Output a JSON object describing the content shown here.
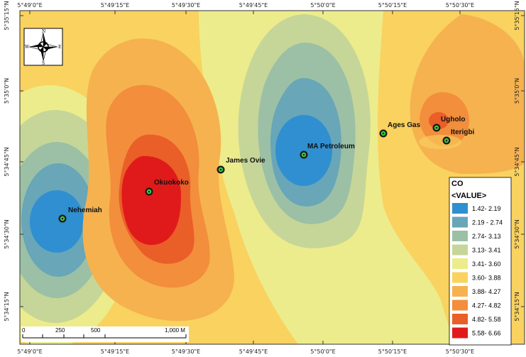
{
  "map": {
    "top_ticks": [
      "5°49'0\"E",
      "5°49'15\"E",
      "5°49'30\"E",
      "5°49'45\"E",
      "5°50'0\"E",
      "5°50'15\"E",
      "5°50'30\"E"
    ],
    "bottom_ticks": [
      "5°49'0\"E",
      "5°49'15\"E",
      "5°49'30\"E",
      "5°49'45\"E",
      "5°50'0\"E",
      "5°50'15\"E",
      "5°50'30\"E"
    ],
    "left_ticks": [
      "5°35'15\"N",
      "5°35'0\"N",
      "5°34'45\"N",
      "5°34'30\"N",
      "5°34'15\"N"
    ],
    "right_ticks": [
      "5°35'15\"N",
      "5°35'0\"N",
      "5°34'45\"N",
      "5°34'30\"N",
      "5°34'15\"N"
    ]
  },
  "sites": [
    {
      "name": "Nehemiah"
    },
    {
      "name": "Okuokoko"
    },
    {
      "name": "James Ovie"
    },
    {
      "name": "MA Petroleum"
    },
    {
      "name": "Ages Gas"
    },
    {
      "name": "Ugholo"
    },
    {
      "name": "Iterigbi"
    }
  ],
  "legend": {
    "title": "CO",
    "subtitle": "<VALUE>",
    "classes": [
      {
        "label": "1.42- 2.19",
        "color": "#2f8fd0"
      },
      {
        "label": "2.19 - 2.74",
        "color": "#68a6b8"
      },
      {
        "label": "2.74- 3.13",
        "color": "#9cc0a5"
      },
      {
        "label": "3.13- 3.41",
        "color": "#c6d698"
      },
      {
        "label": "3.41- 3.60",
        "color": "#ecec8c"
      },
      {
        "label": "3.60- 3.88",
        "color": "#f9d260"
      },
      {
        "label": "3.88- 4.27",
        "color": "#f6b24f"
      },
      {
        "label": "4.27- 4.82",
        "color": "#f28e3c"
      },
      {
        "label": "4.82- 5.58",
        "color": "#ea5e28"
      },
      {
        "label": "5.58- 6.66",
        "color": "#e01a1a"
      }
    ]
  },
  "scalebar": {
    "labels": [
      "0",
      "250",
      "500",
      "1,000 M"
    ]
  },
  "compass": {
    "n": "N",
    "s": "S",
    "e": "E",
    "w": "W"
  }
}
